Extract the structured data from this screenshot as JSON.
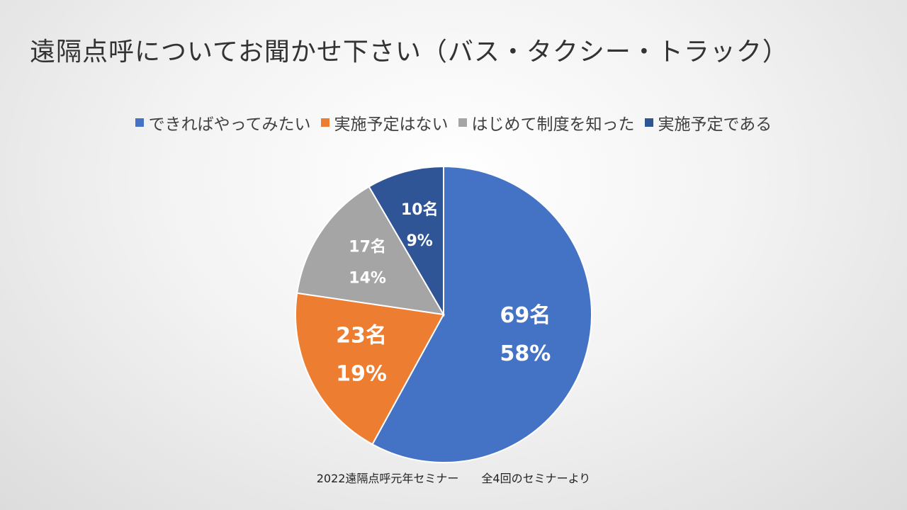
{
  "slide": {
    "title": "遠隔点呼についてお聞かせ下さい（バス・タクシー・トラック）",
    "footnote": "2022遠隔点呼元年セミナー　　全4回のセミナーより"
  },
  "chart_data": {
    "type": "pie",
    "title": "遠隔点呼についてお聞かせ下さい（バス・タクシー・トラック）",
    "legend_position": "top",
    "start_angle_deg": 0,
    "direction": "clockwise",
    "slices": [
      {
        "label": "できればやってみたい",
        "count": 69,
        "count_label": "69名",
        "percent_label": "58%",
        "color": "#4472C4"
      },
      {
        "label": "実施予定はない",
        "count": 23,
        "count_label": "23名",
        "percent_label": "19%",
        "color": "#ED7D31"
      },
      {
        "label": "はじめて制度を知った",
        "count": 17,
        "count_label": "17名",
        "percent_label": "14%",
        "color": "#A5A5A5"
      },
      {
        "label": "実施予定である",
        "count": 10,
        "count_label": "10名",
        "percent_label": "9%",
        "color": "#2F5597"
      }
    ]
  }
}
